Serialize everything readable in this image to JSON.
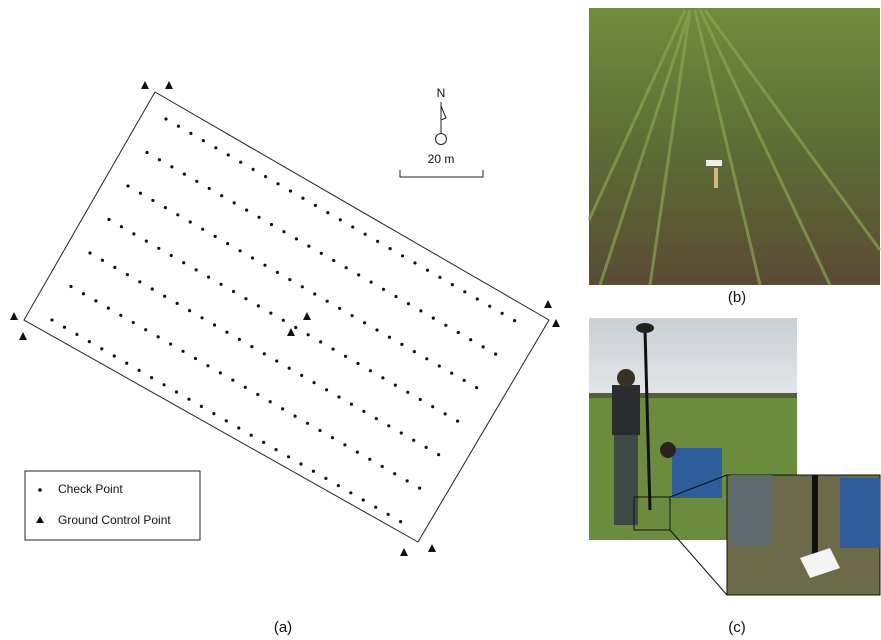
{
  "north": "N",
  "scale_label": "20 m",
  "legend": [
    "Check Point",
    "Ground Control Point"
  ],
  "captions": [
    "(a)",
    "(b)",
    "(c)"
  ]
}
